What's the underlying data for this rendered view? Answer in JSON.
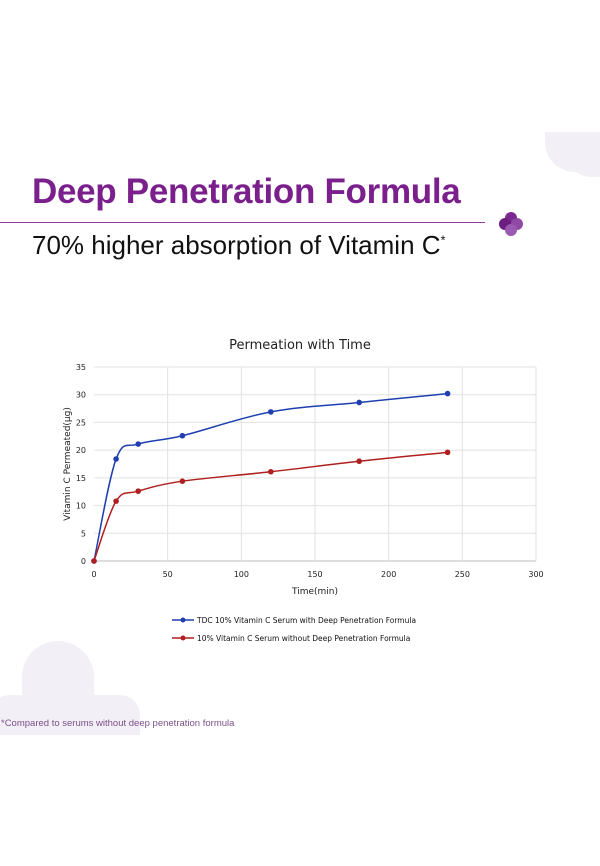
{
  "header": {
    "title": "Deep Penetration Formula",
    "subtitle": "70% higher absorption of Vitamin C",
    "subtitle_mark": "*"
  },
  "footnote": "*Compared to serums without deep penetration formula",
  "colors": {
    "brand": "#7a1f8c",
    "blob": "#f3eff7",
    "series_1": "#1f3fb0",
    "series_2": "#b01f1f"
  },
  "icons": {
    "logo": "purple-plus-clover-icon"
  },
  "chart_data": {
    "type": "line",
    "title": "Permeation with Time",
    "xlabel": "Time(min)",
    "ylabel": "Vitamin C Permeated(µg)",
    "xlim": [
      0,
      300
    ],
    "ylim": [
      0,
      35
    ],
    "xticks": [
      0,
      50,
      100,
      150,
      200,
      250,
      300
    ],
    "yticks": [
      0,
      5,
      10,
      15,
      20,
      25,
      30,
      35
    ],
    "grid": true,
    "smooth": true,
    "legend_position": "bottom",
    "x": [
      0,
      15,
      30,
      60,
      120,
      180,
      240
    ],
    "series": [
      {
        "name": "TDC 10% Vitamin C Serum with Deep Penetration Formula",
        "color": "#1f3fb0",
        "values": [
          0,
          18.4,
          21.1,
          22.6,
          26.9,
          28.6,
          30.2
        ]
      },
      {
        "name": "10% Vitamin C Serum without Deep Penetration Formula",
        "color": "#b01f1f",
        "values": [
          0,
          10.8,
          12.6,
          14.4,
          16.1,
          18.0,
          19.6
        ]
      }
    ]
  }
}
